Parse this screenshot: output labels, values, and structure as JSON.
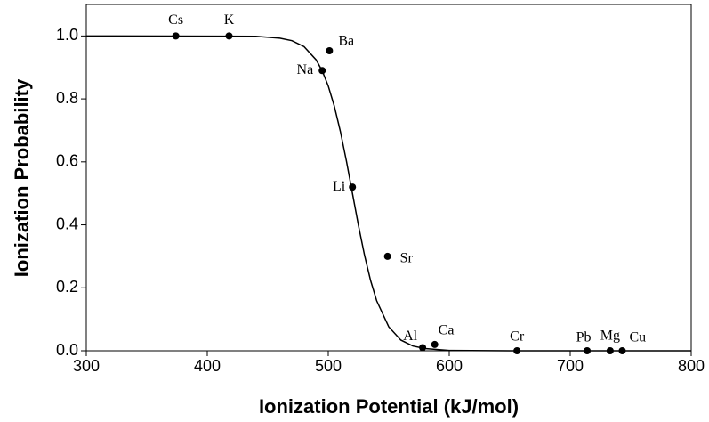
{
  "chart_data": {
    "type": "scatter",
    "xlabel": "Ionization Potential (kJ/mol)",
    "ylabel": "Ionization Probability",
    "xlim": [
      300,
      800
    ],
    "ylim": [
      0,
      1.1
    ],
    "xticks": [
      300,
      400,
      500,
      600,
      700,
      800
    ],
    "yticks": [
      {
        "value": 0,
        "label": "0.0"
      },
      {
        "value": 0.2,
        "label": "0.2"
      },
      {
        "value": 0.4,
        "label": "0.4"
      },
      {
        "value": 0.6,
        "label": "0.6"
      },
      {
        "value": 0.8,
        "label": "0.8"
      },
      {
        "value": 1,
        "label": "1.0"
      }
    ],
    "series": [
      {
        "type": "scatter",
        "color": "#000000",
        "labels": [
          "Cs",
          "K",
          "Ba",
          "Na",
          "Li",
          "Sr",
          "Al",
          "Ca",
          "Cr",
          "Pb",
          "Mg",
          "Cu"
        ],
        "x": [
          374,
          418,
          501,
          495,
          520,
          549,
          578,
          588,
          656,
          714,
          733,
          743
        ],
        "values": [
          1.0,
          1.0,
          0.953,
          0.89,
          0.52,
          0.3,
          0.01,
          0.02,
          0.0,
          0.0,
          0.0,
          0.0
        ]
      },
      {
        "type": "line",
        "color": "#000000",
        "x": [
          300,
          440,
          460,
          470,
          480,
          490,
          495,
          500,
          505,
          510,
          515,
          520,
          525,
          530,
          535,
          540,
          550,
          560,
          570,
          580,
          600,
          650,
          800
        ],
        "values": [
          1.0,
          0.999,
          0.993,
          0.985,
          0.966,
          0.924,
          0.889,
          0.841,
          0.777,
          0.697,
          0.603,
          0.5,
          0.397,
          0.303,
          0.223,
          0.159,
          0.076,
          0.034,
          0.015,
          0.007,
          0.001,
          0.0,
          0.0
        ]
      }
    ]
  }
}
